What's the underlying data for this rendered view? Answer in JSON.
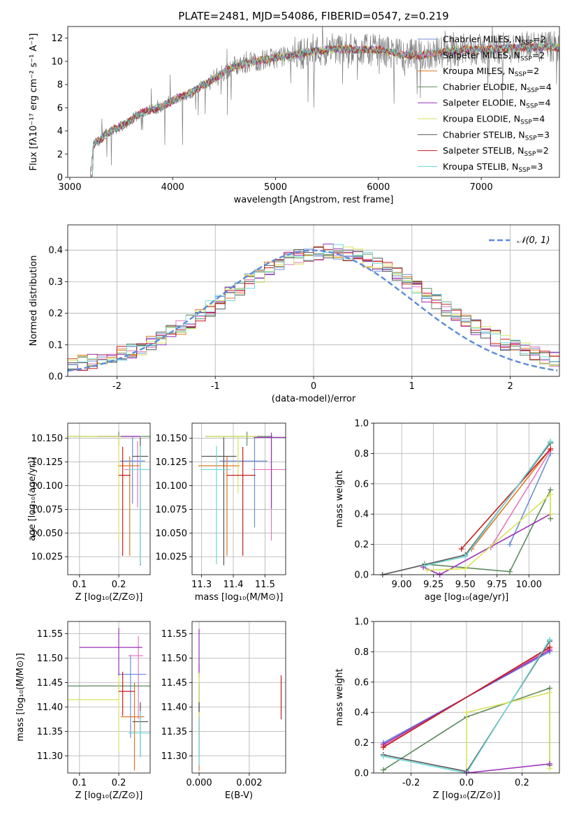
{
  "figure": {
    "title": "PLATE=2481, MJD=54086, FIBERID=0547, z=0.219"
  },
  "colors": {
    "Chabrier MILES": "#6b8fd6",
    "Salpeter MILES": "#e377c2",
    "Kroupa MILES": "#dd7722",
    "Chabrier ELODIE": "#5f8a5f",
    "Salpeter ELODIE": "#9b30b8",
    "Kroupa ELODIE": "#d8e35a",
    "Chabrier STELIB": "#555555",
    "Salpeter STELIB": "#c41e1e",
    "Kroupa STELIB": "#6fd8d8",
    "normal": "#5b8bd9",
    "data": "#808080"
  },
  "chart_data": [
    {
      "id": "spectrum",
      "type": "line",
      "xlabel": "wavelength [Angstrom, rest frame]",
      "ylabel": "Flux [fλ10⁻¹⁷ erg cm⁻² s⁻¹ A⁻¹]",
      "xlim": [
        2980,
        7760
      ],
      "ylim": [
        0,
        13
      ],
      "xticks": [
        3000,
        4000,
        5000,
        6000,
        7000
      ],
      "yticks": [
        0,
        2,
        4,
        6,
        8,
        10,
        12
      ],
      "legend_position": "right",
      "legend": [
        {
          "model": "Chabrier MILES",
          "nssp": "2"
        },
        {
          "model": "Salpeter MILES",
          "nssp": "2"
        },
        {
          "model": "Kroupa MILES",
          "nssp": "2"
        },
        {
          "model": "Chabrier ELODIE",
          "nssp": "4"
        },
        {
          "model": "Salpeter ELODIE",
          "nssp": "4"
        },
        {
          "model": "Kroupa ELODIE",
          "nssp": "4"
        },
        {
          "model": "Chabrier STELIB",
          "nssp": "3"
        },
        {
          "model": "Salpeter STELIB",
          "nssp": "2"
        },
        {
          "model": "Kroupa STELIB",
          "nssp": "3"
        }
      ],
      "continuum": {
        "x": [
          3200,
          3230,
          3400,
          3560,
          3700,
          3900,
          4000,
          4200,
          4400,
          4600,
          4800,
          5000,
          5200,
          5400,
          5600,
          5800,
          6000,
          6200,
          6400,
          6600,
          6800,
          7000,
          7200,
          7400,
          7600,
          7760
        ],
        "y": [
          0.1,
          2.8,
          4.0,
          4.7,
          5.6,
          6.1,
          6.6,
          7.4,
          8.5,
          9.6,
          10.0,
          10.3,
          10.6,
          10.9,
          11.1,
          11.0,
          11.0,
          10.6,
          10.5,
          10.8,
          11.0,
          11.0,
          11.1,
          11.2,
          11.2,
          11.2
        ]
      }
    },
    {
      "id": "residuals",
      "type": "step",
      "xlabel": "(data-model)/error",
      "ylabel": "Normed distribution",
      "xlim": [
        -2.5,
        2.5
      ],
      "ylim": [
        0,
        0.48
      ],
      "xticks": [
        -2,
        -1,
        0,
        1,
        2
      ],
      "yticks": [
        0.0,
        0.1,
        0.2,
        0.3,
        0.4
      ],
      "grid": true,
      "legend_position": "top-right",
      "normal_curve_label": "𝒩(0, 1)",
      "bin_width": 0.1
    },
    {
      "id": "z-vs-age",
      "type": "errorbar",
      "xlabel": "Z [log₁₀(Z/Z⊙)]",
      "ylabel": "age  [log₁₀(age/yr)]",
      "xlim": [
        0.07,
        0.28
      ],
      "ylim": [
        10.006,
        10.166
      ],
      "xticks": [
        0.1,
        0.2
      ],
      "yticks": [
        10.025,
        10.05,
        10.075,
        10.1,
        10.125,
        10.15
      ],
      "grid": true,
      "points": [
        {
          "model": "Chabrier MILES",
          "x": 0.235,
          "y": 10.126,
          "xerr": [
            0.032,
            0.032
          ],
          "yerr": [
            0.045,
            0.025
          ]
        },
        {
          "model": "Salpeter MILES",
          "x": 0.248,
          "y": 10.117,
          "xerr": [
            0.034,
            0.02
          ],
          "yerr": [
            0.04,
            0.03
          ]
        },
        {
          "model": "Kroupa MILES",
          "x": 0.228,
          "y": 10.121,
          "xerr": [
            0.03,
            0.025
          ],
          "yerr": [
            0.095,
            0.01
          ]
        },
        {
          "model": "Chabrier ELODIE",
          "x": 0.2,
          "y": 10.152,
          "xerr": [
            0.13,
            0.08
          ],
          "yerr": [
            0.01,
            0.005
          ]
        },
        {
          "model": "Salpeter ELODIE",
          "x": 0.2,
          "y": 10.152,
          "xerr": [
            0.055,
            0.055
          ],
          "yerr": [
            0.0,
            0.0
          ]
        },
        {
          "model": "Kroupa ELODIE",
          "x": 0.2,
          "y": 10.152,
          "xerr": [
            0.13,
            0.005
          ],
          "yerr": [
            0.11,
            0.0
          ]
        },
        {
          "model": "Chabrier STELIB",
          "x": 0.255,
          "y": 10.131,
          "xerr": [
            0.02,
            0.02
          ],
          "yerr": [
            0.115,
            0.02
          ]
        },
        {
          "model": "Salpeter STELIB",
          "x": 0.21,
          "y": 10.111,
          "xerr": [
            0.01,
            0.02
          ],
          "yerr": [
            0.085,
            0.03
          ]
        },
        {
          "model": "Kroupa STELIB",
          "x": 0.255,
          "y": 10.117,
          "xerr": [
            0.03,
            0.025
          ],
          "yerr": [
            0.1,
            0.025
          ]
        }
      ]
    },
    {
      "id": "mass-vs-age",
      "type": "errorbar",
      "xlabel": "mass [log₁₀(M/M⊙)]",
      "ylabel": "",
      "xlim": [
        11.27,
        11.565
      ],
      "ylim": [
        10.006,
        10.166
      ],
      "xticks": [
        11.3,
        11.4,
        11.5
      ],
      "yticks": [
        10.025,
        10.05,
        10.075,
        10.1,
        10.125,
        10.15
      ],
      "grid": true,
      "points": [
        {
          "model": "Chabrier MILES",
          "x": 11.467,
          "y": 10.126,
          "xerr": [
            0.11,
            0.04
          ],
          "yerr": [
            0.07,
            0.025
          ]
        },
        {
          "model": "Salpeter MILES",
          "x": 11.52,
          "y": 10.117,
          "xerr": [
            0.06,
            0.045
          ],
          "yerr": [
            0.075,
            0.03
          ]
        },
        {
          "model": "Kroupa MILES",
          "x": 11.38,
          "y": 10.121,
          "xerr": [
            0.09,
            0.04
          ],
          "yerr": [
            0.095,
            0.01
          ]
        },
        {
          "model": "Chabrier ELODIE",
          "x": 11.443,
          "y": 10.152,
          "xerr": [
            0.13,
            0.08
          ],
          "yerr": [
            0.01,
            0.005
          ]
        },
        {
          "model": "Salpeter ELODIE",
          "x": 11.52,
          "y": 10.151,
          "xerr": [
            0.055,
            0.055
          ],
          "yerr": [
            0.075,
            0.005
          ]
        },
        {
          "model": "Kroupa ELODIE",
          "x": 11.415,
          "y": 10.152,
          "xerr": [
            0.1,
            0.06
          ],
          "yerr": [
            0.06,
            0.0
          ]
        },
        {
          "model": "Chabrier STELIB",
          "x": 11.37,
          "y": 10.131,
          "xerr": [
            0.07,
            0.04
          ],
          "yerr": [
            0.115,
            0.02
          ]
        },
        {
          "model": "Salpeter STELIB",
          "x": 11.43,
          "y": 10.111,
          "xerr": [
            0.05,
            0.04
          ],
          "yerr": [
            0.085,
            0.03
          ]
        },
        {
          "model": "Kroupa STELIB",
          "x": 11.347,
          "y": 10.117,
          "xerr": [
            0.05,
            0.045
          ],
          "yerr": [
            0.1,
            0.025
          ]
        }
      ]
    },
    {
      "id": "age-vs-weight",
      "type": "line",
      "xlabel": "age  [log₁₀(age/yr)]",
      "ylabel": "mass weight",
      "xlim": [
        8.78,
        10.24
      ],
      "ylim": [
        0,
        1.0
      ],
      "xticks": [
        9.0,
        9.25,
        9.5,
        9.75,
        10.0
      ],
      "yticks": [
        0.0,
        0.2,
        0.4,
        0.6,
        0.8,
        1.0
      ],
      "grid": true,
      "series": [
        {
          "model": "Chabrier MILES",
          "x": [
            9.85,
            10.17
          ],
          "y": [
            0.2,
            0.8
          ]
        },
        {
          "model": "Salpeter MILES",
          "x": [
            9.7,
            10.17
          ],
          "y": [
            0.18,
            0.82
          ]
        },
        {
          "model": "Kroupa MILES",
          "x": [
            9.55,
            10.17
          ],
          "y": [
            0.17,
            0.83
          ]
        },
        {
          "model": "Chabrier ELODIE",
          "x": [
            9.18,
            9.85,
            10.17,
            10.17
          ],
          "y": [
            0.07,
            0.02,
            0.56,
            0.37
          ]
        },
        {
          "model": "Salpeter ELODIE",
          "x": [
            9.17,
            9.3,
            10.17
          ],
          "y": [
            0.05,
            0.0,
            0.4
          ]
        },
        {
          "model": "Kroupa ELODIE",
          "x": [
            9.2,
            9.5,
            10.17,
            10.17
          ],
          "y": [
            0.03,
            0.04,
            0.53,
            0.4
          ]
        },
        {
          "model": "Chabrier STELIB",
          "x": [
            8.85,
            9.5,
            10.17
          ],
          "y": [
            0.0,
            0.13,
            0.87
          ]
        },
        {
          "model": "Salpeter STELIB",
          "x": [
            9.47,
            10.17
          ],
          "y": [
            0.17,
            0.83
          ]
        },
        {
          "model": "Kroupa STELIB",
          "x": [
            9.18,
            9.5,
            10.17
          ],
          "y": [
            0.06,
            0.12,
            0.88
          ]
        }
      ]
    },
    {
      "id": "z-vs-mass",
      "type": "errorbar",
      "xlabel": "Z [log₁₀(Z/Z⊙)]",
      "ylabel": "mass [log₁₀(M/M⊙)]",
      "xlim": [
        0.07,
        0.28
      ],
      "ylim": [
        11.265,
        11.575
      ],
      "xticks": [
        0.1,
        0.2
      ],
      "yticks": [
        11.3,
        11.35,
        11.4,
        11.45,
        11.5,
        11.55
      ],
      "grid": true,
      "points": [
        {
          "model": "Chabrier MILES",
          "x": 0.23,
          "y": 11.467,
          "xerr": [
            0.032,
            0.04
          ],
          "yerr": [
            0.13,
            0.04
          ]
        },
        {
          "model": "Salpeter MILES",
          "x": 0.25,
          "y": 11.505,
          "xerr": [
            0.025,
            0.012
          ],
          "yerr": [
            0.13,
            0.04
          ]
        },
        {
          "model": "Kroupa MILES",
          "x": 0.24,
          "y": 11.38,
          "xerr": [
            0.035,
            0.025
          ],
          "yerr": [
            0.11,
            0.07
          ]
        },
        {
          "model": "Chabrier ELODIE",
          "x": 0.2,
          "y": 11.443,
          "xerr": [
            0.13,
            0.08
          ],
          "yerr": [
            0.01,
            0.005
          ]
        },
        {
          "model": "Salpeter ELODIE",
          "x": 0.2,
          "y": 11.522,
          "xerr": [
            0.1,
            0.06
          ],
          "yerr": [
            0.06,
            0.04
          ]
        },
        {
          "model": "Kroupa ELODIE",
          "x": 0.2,
          "y": 11.415,
          "xerr": [
            0.13,
            0.0
          ],
          "yerr": [
            0.105,
            0.05
          ]
        },
        {
          "model": "Chabrier STELIB",
          "x": 0.255,
          "y": 11.37,
          "xerr": [
            0.02,
            0.02
          ],
          "yerr": [
            0.07,
            0.04
          ]
        },
        {
          "model": "Salpeter STELIB",
          "x": 0.21,
          "y": 11.432,
          "xerr": [
            0.01,
            0.03
          ],
          "yerr": [
            0.05,
            0.04
          ]
        },
        {
          "model": "Kroupa STELIB",
          "x": 0.255,
          "y": 11.347,
          "xerr": [
            0.03,
            0.025
          ],
          "yerr": [
            0.05,
            0.045
          ]
        }
      ]
    },
    {
      "id": "ebv-vs-mass",
      "type": "errorbar",
      "xlabel": "E(B-V)",
      "ylabel": "",
      "xlim": [
        -0.00028,
        0.00345
      ],
      "ylim": [
        11.265,
        11.575
      ],
      "xticks": [
        0.0,
        0.002
      ],
      "xticklabels": [
        "0.000",
        "0.002"
      ],
      "yticks": [
        11.3,
        11.35,
        11.4,
        11.45,
        11.5,
        11.55
      ],
      "grid": true,
      "points": [
        {
          "model": "Chabrier MILES",
          "x": 0.0,
          "y": 11.4,
          "xerr": [
            0,
            0
          ],
          "yerr": [
            0.1,
            0.05
          ]
        },
        {
          "model": "Salpeter MILES",
          "x": 0.0,
          "y": 11.45,
          "xerr": [
            0,
            0
          ],
          "yerr": [
            0.12,
            0.04
          ]
        },
        {
          "model": "Kroupa MILES",
          "x": 0.0,
          "y": 11.35,
          "xerr": [
            0,
            0
          ],
          "yerr": [
            0.08,
            0.04
          ]
        },
        {
          "model": "Chabrier ELODIE",
          "x": 0.0,
          "y": 11.44,
          "xerr": [
            0,
            0
          ],
          "yerr": [
            0.05,
            0.01
          ]
        },
        {
          "model": "Salpeter ELODIE",
          "x": 0.0,
          "y": 11.52,
          "xerr": [
            0,
            0
          ],
          "yerr": [
            0.06,
            0.04
          ]
        },
        {
          "model": "Kroupa ELODIE",
          "x": 0.0,
          "y": 11.42,
          "xerr": [
            0,
            0
          ],
          "yerr": [
            0.1,
            0.05
          ]
        },
        {
          "model": "Chabrier STELIB",
          "x": 0.0,
          "y": 11.4,
          "xerr": [
            0,
            0
          ],
          "yerr": [
            0.01,
            0.01
          ]
        },
        {
          "model": "Salpeter STELIB",
          "x": 0.00327,
          "y": 11.42,
          "xerr": [
            0,
            0
          ],
          "yerr": [
            0.045,
            0.045
          ]
        },
        {
          "model": "Kroupa STELIB",
          "x": 0.0,
          "y": 11.33,
          "xerr": [
            0,
            0
          ],
          "yerr": [
            0.05,
            0.05
          ]
        }
      ]
    },
    {
      "id": "z-vs-weight",
      "type": "line",
      "xlabel": "Z [log₁₀(Z/Z⊙)]",
      "ylabel": "mass weight",
      "xlim": [
        -0.335,
        0.335
      ],
      "ylim": [
        0,
        1.0
      ],
      "xticks": [
        -0.2,
        0.0,
        0.2
      ],
      "yticks": [
        0.0,
        0.2,
        0.4,
        0.6,
        0.8,
        1.0
      ],
      "grid": true,
      "series": [
        {
          "model": "Chabrier MILES",
          "x": [
            -0.3,
            0.3
          ],
          "y": [
            0.2,
            0.8
          ]
        },
        {
          "model": "Salpeter MILES",
          "x": [
            -0.3,
            0.3
          ],
          "y": [
            0.18,
            0.82
          ]
        },
        {
          "model": "Kroupa MILES",
          "x": [
            -0.3,
            0.3
          ],
          "y": [
            0.17,
            0.83
          ]
        },
        {
          "model": "Chabrier ELODIE",
          "x": [
            -0.3,
            0.0,
            0.3,
            0.3
          ],
          "y": [
            0.02,
            0.37,
            0.56,
            0.05
          ]
        },
        {
          "model": "Salpeter ELODIE",
          "x": [
            -0.3,
            0.3
          ],
          "y": [
            0.19,
            0.81
          ]
        },
        {
          "model": "Kroupa ELODIE",
          "x": [
            0.0,
            0.0,
            0.3,
            0.3
          ],
          "y": [
            0.0,
            0.4,
            0.53,
            0.03
          ]
        },
        {
          "model": "Chabrier STELIB",
          "x": [
            -0.3,
            0.0,
            0.3
          ],
          "y": [
            0.12,
            0.01,
            0.87
          ]
        },
        {
          "model": "Salpeter STELIB",
          "x": [
            -0.3,
            0.3
          ],
          "y": [
            0.17,
            0.83
          ]
        },
        {
          "model": "Kroupa STELIB",
          "x": [
            -0.3,
            0.0,
            0.3
          ],
          "y": [
            0.11,
            0.0,
            0.88
          ]
        },
        {
          "model": "Salpeter ELODIE low",
          "x": [
            0.0,
            0.3
          ],
          "y": [
            0.0,
            0.06
          ]
        }
      ]
    }
  ]
}
